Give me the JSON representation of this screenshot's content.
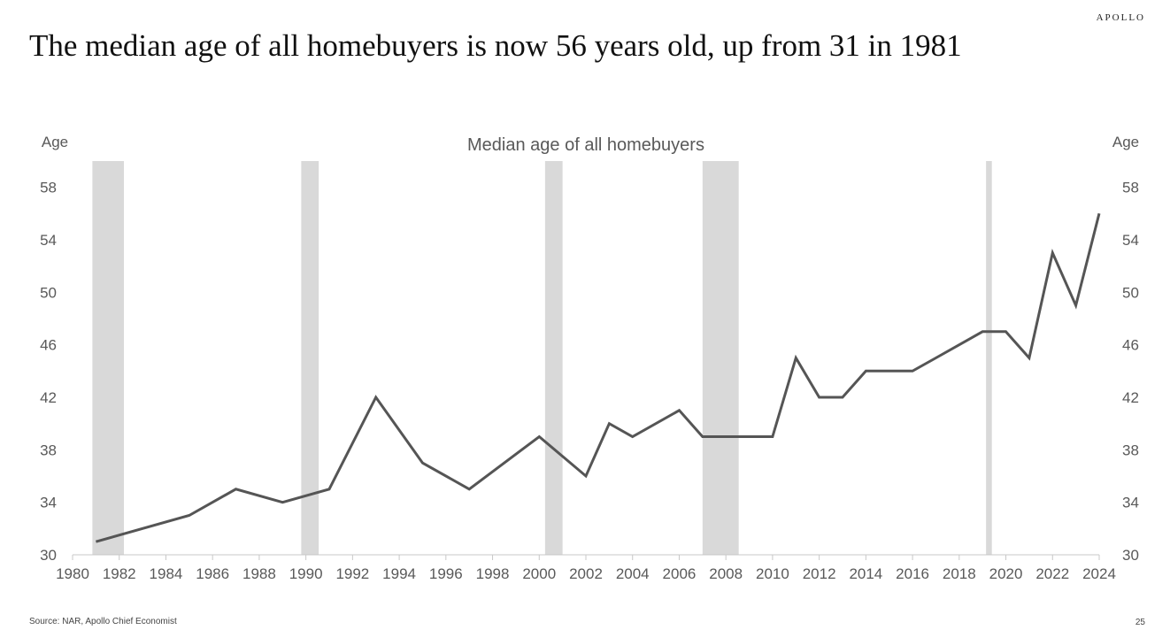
{
  "header": {
    "brand": "APOLLO"
  },
  "headline": "The median age of all homebuyers is now 56 years old, up from 31 in 1981",
  "footer": {
    "source": "Source: NAR, Apollo Chief Economist",
    "page_number": "25"
  },
  "colors": {
    "line": "#555555",
    "recession": "#d9d9d9",
    "axis_text": "#595959"
  },
  "chart_data": {
    "type": "line",
    "title": "Median age of all homebuyers",
    "ylabel_left": "Age",
    "ylabel_right": "Age",
    "xlim": [
      1980,
      2024
    ],
    "ylim": [
      30,
      60
    ],
    "x_ticks": [
      1980,
      1982,
      1984,
      1986,
      1988,
      1990,
      1992,
      1994,
      1996,
      1998,
      2000,
      2002,
      2004,
      2006,
      2008,
      2010,
      2012,
      2014,
      2016,
      2018,
      2020,
      2022,
      2024
    ],
    "y_ticks": [
      30,
      34,
      38,
      42,
      46,
      50,
      54,
      58
    ],
    "grid": false,
    "series": [
      {
        "x": [
          1981,
          1985,
          1987,
          1989,
          1991,
          1993,
          1995,
          1997,
          2000,
          2002,
          2003,
          2004,
          2006,
          2007,
          2008,
          2009,
          2010,
          2011,
          2012,
          2013,
          2014,
          2015,
          2016,
          2017,
          2018,
          2019,
          2020,
          2021,
          2022,
          2023,
          2024
        ],
        "values": [
          31,
          33,
          35,
          34,
          35,
          42,
          37,
          35,
          39,
          36,
          40,
          39,
          41,
          39,
          39,
          39,
          39,
          45,
          42,
          42,
          44,
          44,
          44,
          45,
          46,
          47,
          47,
          45,
          53,
          49,
          56
        ]
      }
    ],
    "recessions": [
      [
        1980.85,
        1982.2
      ],
      [
        1989.8,
        1990.55
      ],
      [
        2000.25,
        2001.0
      ],
      [
        2007.0,
        2008.55
      ],
      [
        2019.15,
        2019.4
      ]
    ]
  }
}
